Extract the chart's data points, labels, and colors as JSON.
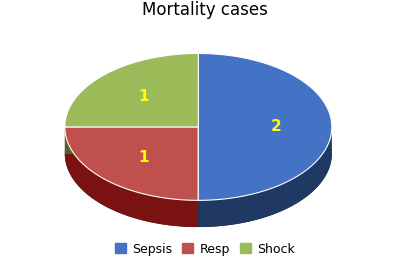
{
  "title": "Mortality cases",
  "title_fontsize": 12,
  "labels": [
    "Sepsis",
    "Resp",
    "Shock"
  ],
  "values": [
    2,
    1,
    1
  ],
  "colors": [
    "#4472C4",
    "#C0504D",
    "#9BBB59"
  ],
  "side_colors": [
    "#1F3864",
    "#7B1212",
    "#4F6228"
  ],
  "label_values": [
    "2",
    "1",
    "1"
  ],
  "label_color": "#FFFF00",
  "label_fontsize": 11,
  "legend_fontsize": 9,
  "startangle": 90,
  "background_color": "#FFFFFF"
}
